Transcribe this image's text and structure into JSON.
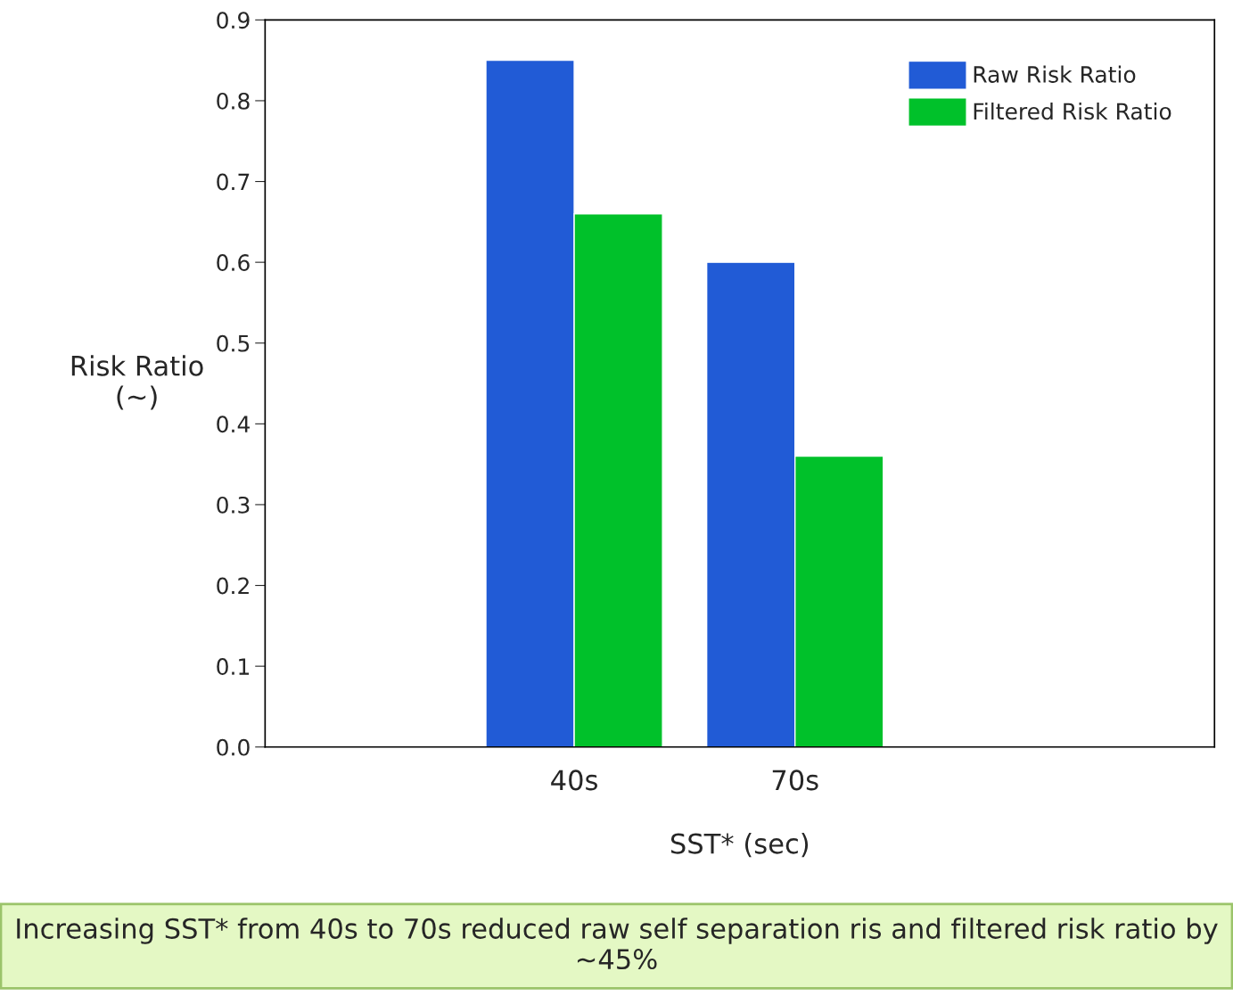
{
  "chart_data": {
    "type": "bar",
    "xlabel": "SST* (sec)",
    "ylabel": "Risk Ratio\n(~)",
    "categories": [
      "40s",
      "70s"
    ],
    "series": [
      {
        "name": "Raw Risk Ratio",
        "color": "#215bd6",
        "values": [
          0.85,
          0.6
        ]
      },
      {
        "name": "Filtered Risk Ratio",
        "color": "#00c12a",
        "values": [
          0.66,
          0.36
        ]
      }
    ],
    "ylim": [
      0.0,
      0.9
    ],
    "yticks": [
      {
        "value": 0,
        "label": "0.0"
      },
      0.1,
      0.2,
      0.3,
      0.4,
      0.5,
      0.6,
      0.7,
      0.8,
      0.9
    ],
    "grid": false,
    "legend": "top right",
    "annotations": [
      "Increasing SST* from 40s to 70s reduced raw self separation ris and filtered risk ratio by ~45%"
    ]
  }
}
